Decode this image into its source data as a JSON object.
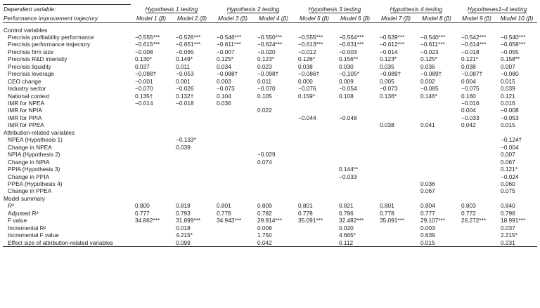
{
  "header": {
    "dependent_label_line1": "Dependent variable:",
    "dependent_label_line2": "Performance improvement trajectory",
    "groups": [
      "Hypothesis 1 testing",
      "Hypothesis 2 testing",
      "Hypothesis 3 testing",
      "Hypothesis 4 testing",
      "Hypotheses1–4 testing"
    ],
    "models": [
      "Model 1 (β)",
      "Model 2 (β)",
      "Model 3 (β)",
      "Model 4 (β)",
      "Model 5 (β)",
      "Model 6 (β)",
      "Model 7 (β)",
      "Model 8 (β)",
      "Model 9 (β)",
      "Model 10 (β)"
    ]
  },
  "sections": [
    {
      "title": "Control variables",
      "rows": [
        {
          "label": "Precrisis profitability performance",
          "values": [
            "−0.555***",
            "−0.526***",
            "−0.546***",
            "−0.550***",
            "−0.555***",
            "−0.564***",
            "−0.539***",
            "−0.540***",
            "−0.542***",
            "−0.540***"
          ]
        },
        {
          "label": "Precrisis performance trajectory",
          "values": [
            "−0.615***",
            "−0.651***",
            "−0.611***",
            "−0.624***",
            "−0.613***",
            "−0.631***",
            "−0.612***",
            "−0.611***",
            "−0.614***",
            "−0.658***"
          ]
        },
        {
          "label": "Precrisis firm size",
          "values": [
            "−0.008",
            "−0.065",
            "−0.007",
            "−0.020",
            "−0.012",
            "−0.003",
            "−0.014",
            "−0.023",
            "−0.018",
            "−0.055"
          ]
        },
        {
          "label": "Precrisis R&D intensity",
          "values": [
            "0.130*",
            "0.149*",
            "0.125*",
            "0.123*",
            "0.126*",
            "0.156**",
            "0.123*",
            "0.125*",
            "0.121*",
            "0.158**"
          ]
        },
        {
          "label": "Precrisis liquidity",
          "values": [
            "0.037",
            "0.011",
            "0.034",
            "0.023",
            "0.038",
            "0.030",
            "0.035",
            "0.036",
            "0.038",
            "0.007"
          ]
        },
        {
          "label": "Precrisis leverage",
          "values": [
            "−0.088†",
            "−0.053",
            "−0.088†",
            "−0.098†",
            "−0.086†",
            "−0.105*",
            "−0.089†",
            "−0.089†",
            "−0.087†",
            "−0.080"
          ]
        },
        {
          "label": "CEO change",
          "values": [
            "−0.001",
            "0.001",
            "0.003",
            "0.011",
            "0.000",
            "0.009",
            "0.005",
            "0.002",
            "0.004",
            "0.015"
          ]
        },
        {
          "label": "Industry sector",
          "values": [
            "−0.070",
            "−0.026",
            "−0.073",
            "−0.070",
            "−0.076",
            "−0.054",
            "−0.073",
            "−0.085",
            "−0.075",
            "0.039"
          ]
        },
        {
          "label": "National context",
          "values": [
            "0.135†",
            "0.132†",
            "0.104",
            "0.105",
            "0.159*",
            "0.108",
            "0.136*",
            "0.146*",
            "0.160",
            "0.121"
          ]
        },
        {
          "label": "IMR for NPEA",
          "values": [
            "−0.014",
            "−0.018",
            "0.036",
            "",
            "",
            "",
            "",
            "",
            "−0.016",
            "0.016"
          ]
        },
        {
          "label": "IMR for NPIA",
          "values": [
            "",
            "",
            "",
            "0.022",
            "",
            "",
            "",
            "",
            "0.004",
            "−0.008"
          ]
        },
        {
          "label": "IMR for PPIA",
          "values": [
            "",
            "",
            "",
            "",
            "−0.044",
            "−0.048",
            "",
            "",
            "−0.033",
            "−0.053"
          ]
        },
        {
          "label": "IMR for PPEA",
          "values": [
            "",
            "",
            "",
            "",
            "",
            "",
            "0.038",
            "0.041",
            "0.042",
            "0.015"
          ]
        }
      ]
    },
    {
      "title": "Attribution-related variables",
      "rows": [
        {
          "label": "NPEA (Hypothesis 1)",
          "values": [
            "",
            "−0.133*",
            "",
            "",
            "",
            "",
            "",
            "",
            "",
            "−0.124†"
          ]
        },
        {
          "label": "Change in NPEA",
          "values": [
            "",
            "0.039",
            "",
            "",
            "",
            "",
            "",
            "",
            "",
            "−0.004"
          ]
        },
        {
          "label": "NPIA (Hypothesis 2)",
          "values": [
            "",
            "",
            "",
            "−0.029",
            "",
            "",
            "",
            "",
            "",
            "0.007"
          ]
        },
        {
          "label": "Change in NPIA",
          "values": [
            "",
            "",
            "",
            "0.074",
            "",
            "",
            "",
            "",
            "",
            "0.067"
          ]
        },
        {
          "label": "PPIA (Hypothesis 3)",
          "values": [
            "",
            "",
            "",
            "",
            "",
            "0.144**",
            "",
            "",
            "",
            "0.121*"
          ]
        },
        {
          "label": "Change in PPIA",
          "values": [
            "",
            "",
            "",
            "",
            "",
            "−0.033",
            "",
            "",
            "",
            "−0.024"
          ]
        },
        {
          "label": "PPEA (Hypothesis 4)",
          "values": [
            "",
            "",
            "",
            "",
            "",
            "",
            "",
            "0.036",
            "",
            "0.060"
          ]
        },
        {
          "label": "Change in PPEA",
          "values": [
            "",
            "",
            "",
            "",
            "",
            "",
            "",
            "0.067",
            "",
            "0.075"
          ]
        }
      ]
    },
    {
      "title": "Model summary",
      "rows": [
        {
          "label": "R²",
          "italic": true,
          "values": [
            "0.800",
            "0.818",
            "0.801",
            "0.809",
            "0.801",
            "0.821",
            "0.801",
            "0.804",
            "0.803",
            "0.840"
          ]
        },
        {
          "label": "Adjusted R²",
          "values": [
            "0.777",
            "0.793",
            "0.778",
            "0.782",
            "0.778",
            "0.796",
            "0.778",
            "0.777",
            "0.772",
            "0.796"
          ]
        },
        {
          "label": "F value",
          "values": [
            "34.862***",
            "31.899***",
            "34.943***",
            "29.914***",
            "35.091***",
            "32.482***",
            "35.091***",
            "29.107***",
            "26.272***",
            "18.991***"
          ]
        },
        {
          "label": "Incremental R²",
          "values": [
            "",
            "0.018",
            "",
            "0.008",
            "",
            "0.020",
            "",
            "0.003",
            "",
            "0.037"
          ]
        },
        {
          "label": "Incremental F value",
          "values": [
            "",
            "4.215*",
            "",
            "1.750",
            "",
            "4.665*",
            "",
            "0.639",
            "",
            "2.215*"
          ]
        },
        {
          "label": "Effect size of attribution-related variables",
          "values": [
            "",
            "0.099",
            "",
            "0.042",
            "",
            "0.112",
            "",
            "0.015",
            "",
            "0.231"
          ]
        }
      ]
    }
  ]
}
